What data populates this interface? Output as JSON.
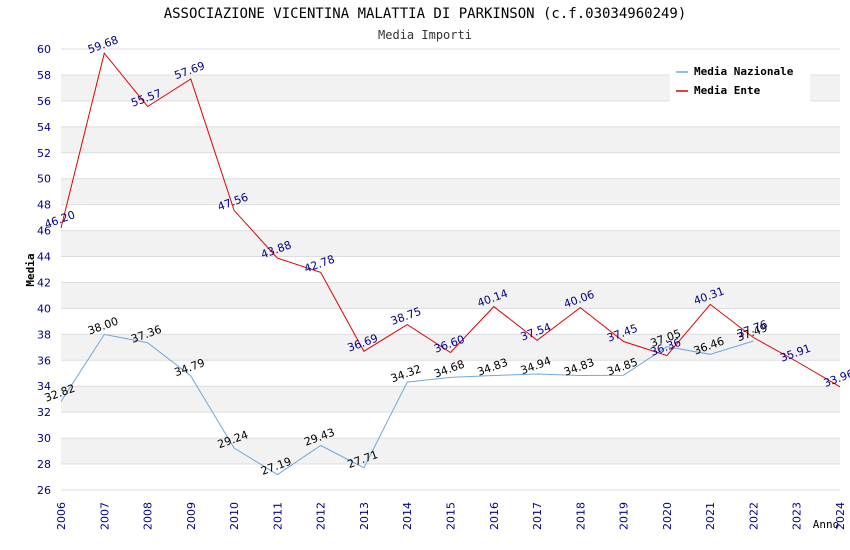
{
  "chart_data": {
    "type": "line",
    "title": "ASSOCIAZIONE VICENTINA MALATTIA DI PARKINSON (c.f.03034960249)",
    "subtitle": "Media Importi",
    "xlabel": "Anno",
    "ylabel": "Media",
    "ylim": [
      26,
      60
    ],
    "ytick_step": 2,
    "grid": true,
    "legend_position": "top-right",
    "x": [
      2006,
      2007,
      2008,
      2009,
      2010,
      2011,
      2012,
      2013,
      2014,
      2015,
      2016,
      2017,
      2018,
      2019,
      2020,
      2021,
      2022,
      2023,
      2024
    ],
    "series": [
      {
        "name": "Media Nazionale",
        "color": "#6fa8dc",
        "label_color": "#000000",
        "x": [
          2006,
          2007,
          2008,
          2009,
          2010,
          2011,
          2012,
          2013,
          2014,
          2015,
          2016,
          2017,
          2018,
          2019,
          2020,
          2021,
          2022
        ],
        "values": [
          32.82,
          38.0,
          37.36,
          34.79,
          29.24,
          27.19,
          29.43,
          27.71,
          34.32,
          34.68,
          34.83,
          34.94,
          34.83,
          34.85,
          37.05,
          36.46,
          37.49
        ],
        "labels": [
          "32.82",
          "38.00",
          "37.36",
          "34.79",
          "29.24",
          "27.19",
          "29.43",
          "27.71",
          "34.32",
          "34.68",
          "34.83",
          "34.94",
          "34.83",
          "34.85",
          "37.05",
          "36.46",
          "37.49"
        ]
      },
      {
        "name": "Media Ente",
        "color": "#e00000",
        "label_color": "#00008b",
        "x": [
          2006,
          2007,
          2008,
          2009,
          2010,
          2011,
          2012,
          2013,
          2014,
          2015,
          2016,
          2017,
          2018,
          2019,
          2020,
          2021,
          2022,
          2023,
          2024
        ],
        "values": [
          46.2,
          59.68,
          55.57,
          57.69,
          47.56,
          43.88,
          42.78,
          36.69,
          38.75,
          36.6,
          40.14,
          37.54,
          40.06,
          37.45,
          36.36,
          40.31,
          37.76,
          35.91,
          33.96
        ],
        "labels": [
          "46.20",
          "59.68",
          "55.57",
          "57.69",
          "47.56",
          "43.88",
          "42.78",
          "36.69",
          "38.75",
          "36.60",
          "40.14",
          "37.54",
          "40.06",
          "37.45",
          "36.36",
          "40.31",
          "37.76",
          "35.91",
          "33.96"
        ]
      }
    ]
  }
}
